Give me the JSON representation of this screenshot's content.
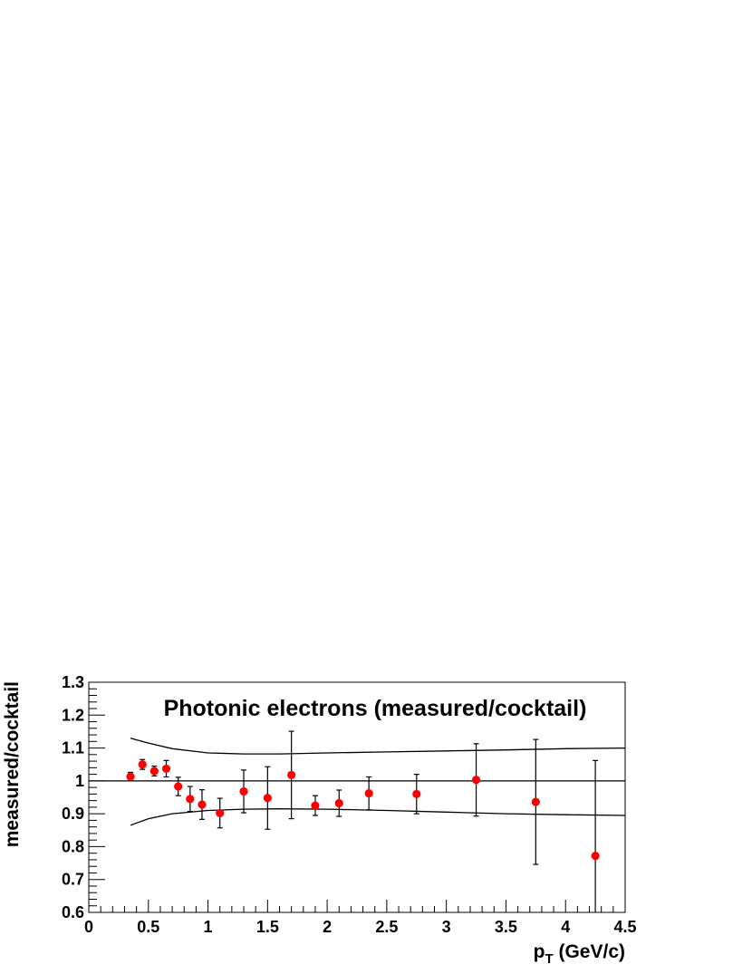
{
  "chart_data": {
    "type": "scatter",
    "title": "Photonic electrons (measured/cocktail)",
    "xlabel_main": "p",
    "xlabel_sub": "T",
    "xlabel_rest": " (GeV/c)",
    "ylabel": "measured/cocktail",
    "xlim": [
      0,
      4.5
    ],
    "ylim": [
      0.6,
      1.3
    ],
    "x_ticks": [
      "0",
      "0.5",
      "1",
      "1.5",
      "2",
      "2.5",
      "3",
      "3.5",
      "4",
      "4.5"
    ],
    "y_ticks": [
      "0.6",
      "0.7",
      "0.8",
      "0.9",
      "1",
      "1.1",
      "1.2",
      "1.3"
    ],
    "grid": false,
    "marker_color": "#ff0000",
    "reference_line": 1.0,
    "series": [
      {
        "x": [
          0.35,
          0.45,
          0.55,
          0.65,
          0.75,
          0.85,
          0.95,
          1.1,
          1.3,
          1.5,
          1.7,
          1.9,
          2.1,
          2.35,
          2.75,
          3.25,
          3.75,
          4.25
        ],
        "y": [
          1.013,
          1.05,
          1.03,
          1.037,
          0.983,
          0.945,
          0.928,
          0.902,
          0.968,
          0.948,
          1.018,
          0.925,
          0.932,
          0.962,
          0.96,
          1.003,
          0.936,
          0.772
        ],
        "err": [
          0.013,
          0.015,
          0.015,
          0.025,
          0.028,
          0.038,
          0.045,
          0.045,
          0.065,
          0.095,
          0.133,
          0.03,
          0.04,
          0.05,
          0.06,
          0.11,
          0.19,
          0.29
        ]
      }
    ],
    "band_upper": {
      "x": [
        0.35,
        0.5,
        0.7,
        1.0,
        1.3,
        1.6,
        2.0,
        2.5,
        3.0,
        3.5,
        4.0,
        4.5
      ],
      "y": [
        1.13,
        1.115,
        1.098,
        1.085,
        1.082,
        1.082,
        1.085,
        1.088,
        1.091,
        1.094,
        1.098,
        1.1
      ]
    },
    "band_lower": {
      "x": [
        0.35,
        0.5,
        0.7,
        1.0,
        1.3,
        1.6,
        2.0,
        2.5,
        3.0,
        3.5,
        4.0,
        4.5
      ],
      "y": [
        0.865,
        0.885,
        0.9,
        0.91,
        0.914,
        0.915,
        0.914,
        0.91,
        0.905,
        0.9,
        0.897,
        0.895
      ]
    }
  }
}
